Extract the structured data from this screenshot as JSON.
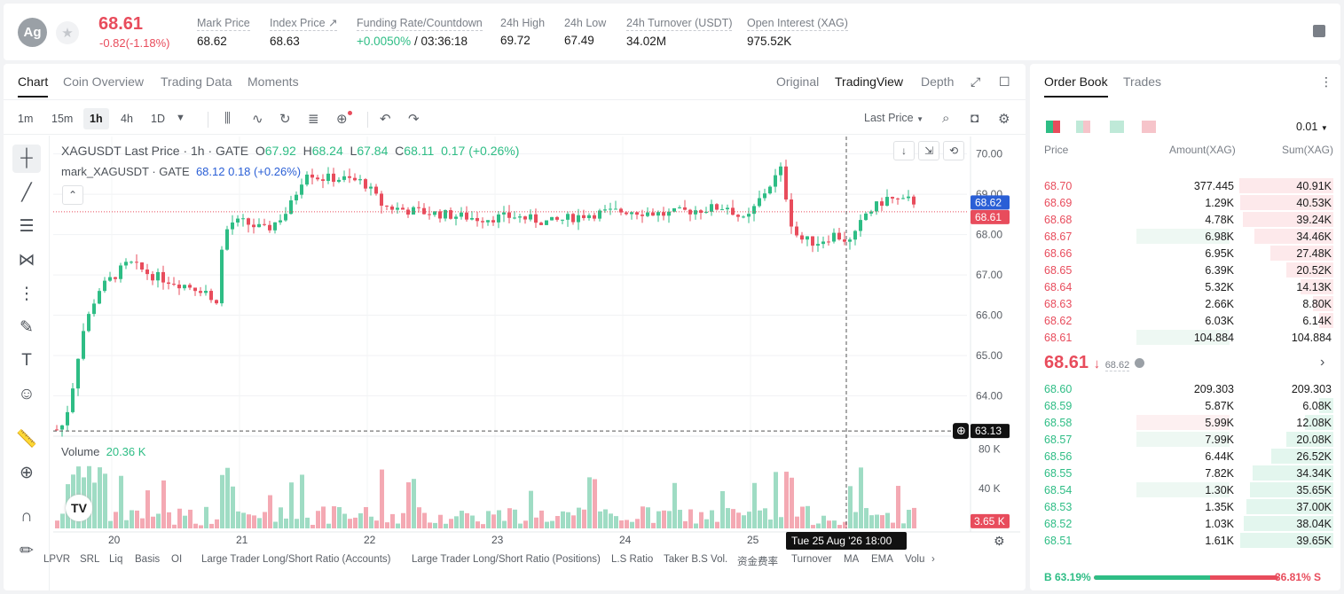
{
  "header": {
    "coin_initials": "Ag",
    "last_price": "68.61",
    "change": "-0.82(-1.18%)",
    "stats": [
      {
        "label": "Mark Price",
        "value": "68.62"
      },
      {
        "label": "Index Price ↗",
        "value": "68.63"
      },
      {
        "label": "Funding Rate/Countdown",
        "value_up": "+0.0050%",
        "value_rest": " / 03:36:18"
      },
      {
        "label": "24h High",
        "value": "69.72"
      },
      {
        "label": "24h Low",
        "value": "67.49"
      },
      {
        "label": "24h Turnover (USDT)",
        "value": "34.02M"
      },
      {
        "label": "Open Interest (XAG)",
        "value": "975.52K"
      }
    ]
  },
  "chart_tabs": [
    "Chart",
    "Coin Overview",
    "Trading Data",
    "Moments"
  ],
  "chart_views": [
    "Original",
    "TradingView",
    "Depth"
  ],
  "timeframes": [
    "1m",
    "15m",
    "1h",
    "4h",
    "1D"
  ],
  "price_select": "Last Price",
  "legend": {
    "symbol": "XAGUSDT Last Price · 1h · GATE",
    "o_label": "O",
    "o": "67.92",
    "h_label": "H",
    "h": "68.24",
    "l_label": "L",
    "l": "67.84",
    "c_label": "C",
    "c": "68.11",
    "chg": "0.17 (+0.26%)",
    "mark_name": "mark_XAGUSDT · GATE",
    "mark_vals": "68.12  0.18 (+0.26%)",
    "volume_label": "Volume",
    "volume_value": "20.36 K"
  },
  "price_axis": [
    "70.00",
    "69.00",
    "68.00",
    "67.00",
    "66.00",
    "65.00",
    "64.00"
  ],
  "price_tags": {
    "mark": "68.62",
    "last": "68.61",
    "cross": "63.13"
  },
  "volume_axis": [
    "80 K",
    "40 K"
  ],
  "volume_tag": "3.65 K",
  "date_axis": [
    "20",
    "21",
    "22",
    "23",
    "24",
    "25"
  ],
  "crosshair_label": "Tue 25 Aug '26    18:00",
  "bottom_indicators": [
    "LPVR",
    "SRL",
    "Liq",
    "Basis",
    "OI",
    "Large Trader Long/Short Ratio (Accounts)",
    "Large Trader Long/Short Ratio (Positions)",
    "L.S Ratio",
    "Taker B.S Vol.",
    "资金费率",
    "Turnover",
    "MA",
    "EMA",
    "Volu"
  ],
  "chart_data": {
    "type": "candlestick",
    "ylim": [
      63.0,
      70.3
    ],
    "x_days": [
      "20",
      "21",
      "22",
      "23",
      "24",
      "25"
    ],
    "volume_ylim": [
      0,
      100000
    ]
  },
  "orderbook": {
    "tabs": [
      "Order Book",
      "Trades"
    ],
    "precision": "0.01",
    "headers": [
      "Price",
      "Amount(XAG)",
      "Sum(XAG)"
    ],
    "asks": [
      {
        "price": "68.70",
        "amount": "377.445",
        "sum": "40.91K",
        "depth": 1.0,
        "amt_frac": 0
      },
      {
        "price": "68.69",
        "amount": "1.29K",
        "sum": "40.53K",
        "depth": 0.99,
        "amt_frac": 0
      },
      {
        "price": "68.68",
        "amount": "4.78K",
        "sum": "39.24K",
        "depth": 0.96,
        "amt_frac": 0
      },
      {
        "price": "68.67",
        "amount": "6.98K",
        "sum": "34.46K",
        "depth": 0.84,
        "amt_frac": 0.97
      },
      {
        "price": "68.66",
        "amount": "6.95K",
        "sum": "27.48K",
        "depth": 0.67,
        "amt_frac": 0
      },
      {
        "price": "68.65",
        "amount": "6.39K",
        "sum": "20.52K",
        "depth": 0.5,
        "amt_frac": 0
      },
      {
        "price": "68.64",
        "amount": "5.32K",
        "sum": "14.13K",
        "depth": 0.35,
        "amt_frac": 0
      },
      {
        "price": "68.63",
        "amount": "2.66K",
        "sum": "8.80K",
        "depth": 0.22,
        "amt_frac": 0
      },
      {
        "price": "68.62",
        "amount": "6.03K",
        "sum": "6.14K",
        "depth": 0.15,
        "amt_frac": 0
      },
      {
        "price": "68.61",
        "amount": "104.884",
        "sum": "104.884",
        "depth": 0.0,
        "amt_frac": 0.97
      }
    ],
    "mid_price": "68.61",
    "mid_mark": "68.62",
    "bids": [
      {
        "price": "68.60",
        "amount": "209.303",
        "sum": "209.303",
        "depth": 0.0,
        "amt_frac": 0
      },
      {
        "price": "68.59",
        "amount": "5.87K",
        "sum": "6.08K",
        "depth": 0.15,
        "amt_frac": 0
      },
      {
        "price": "68.58",
        "amount": "5.99K",
        "sum": "12.08K",
        "depth": 0.3,
        "amt_frac": 0.97
      },
      {
        "price": "68.57",
        "amount": "7.99K",
        "sum": "20.08K",
        "depth": 0.5,
        "amt_frac": 0.97
      },
      {
        "price": "68.56",
        "amount": "6.44K",
        "sum": "26.52K",
        "depth": 0.66,
        "amt_frac": 0
      },
      {
        "price": "68.55",
        "amount": "7.82K",
        "sum": "34.34K",
        "depth": 0.86,
        "amt_frac": 0
      },
      {
        "price": "68.54",
        "amount": "1.30K",
        "sum": "35.65K",
        "depth": 0.89,
        "amt_frac": 0.97
      },
      {
        "price": "68.53",
        "amount": "1.35K",
        "sum": "37.00K",
        "depth": 0.92,
        "amt_frac": 0
      },
      {
        "price": "68.52",
        "amount": "1.03K",
        "sum": "38.04K",
        "depth": 0.95,
        "amt_frac": 0
      },
      {
        "price": "68.51",
        "amount": "1.61K",
        "sum": "39.65K",
        "depth": 0.99,
        "amt_frac": 0
      }
    ],
    "buy_ratio": "B 63.19%",
    "sell_ratio": "36.81% S",
    "buy_frac": 0.6319
  },
  "colors": {
    "up": "#2ebd85",
    "down": "#e84c5c",
    "accent": "#1a1a1a"
  }
}
